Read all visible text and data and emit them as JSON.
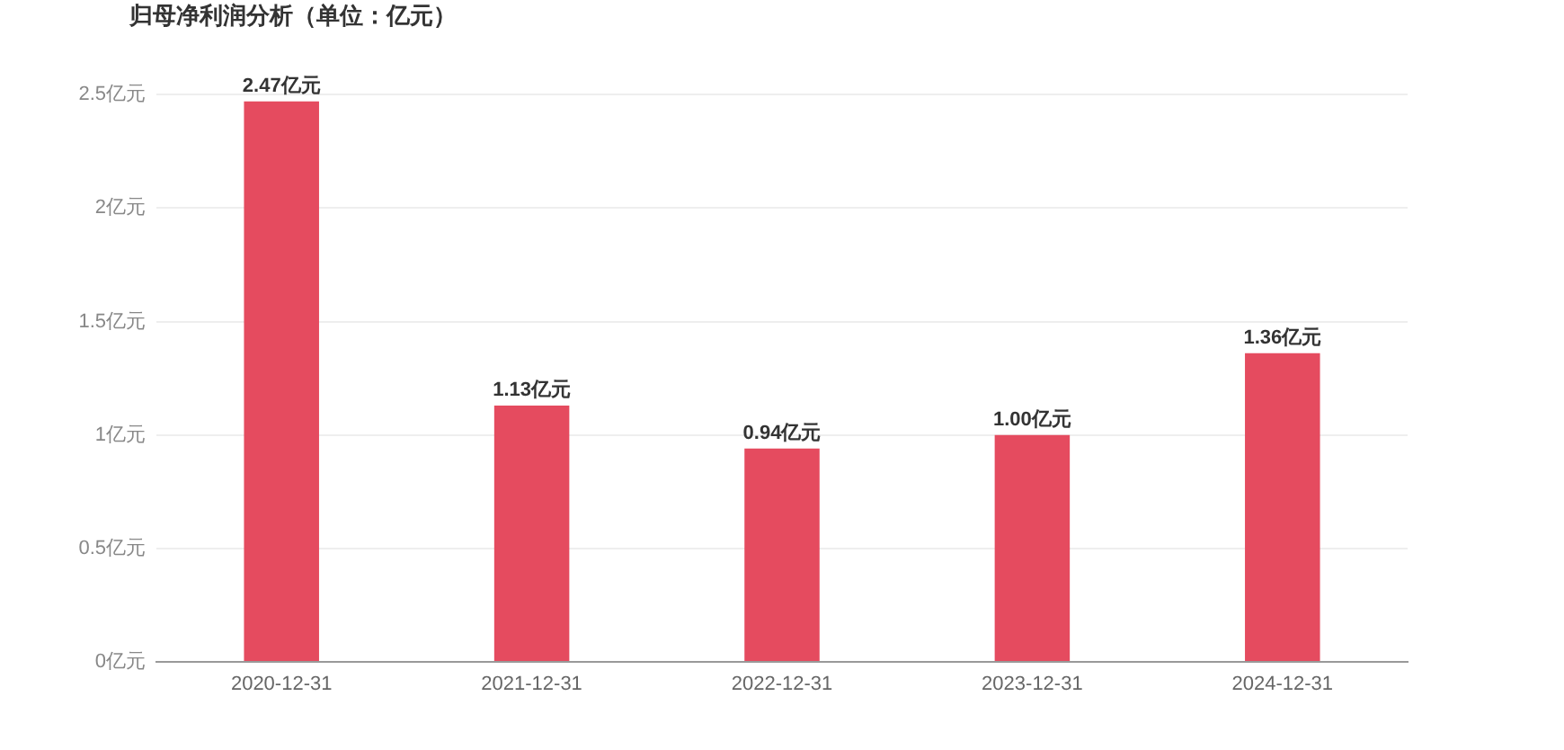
{
  "chart_data": {
    "type": "bar",
    "title": "归母净利润分析（单位：亿元）",
    "categories": [
      "2020-12-31",
      "2021-12-31",
      "2022-12-31",
      "2023-12-31",
      "2024-12-31"
    ],
    "values": [
      2.47,
      1.13,
      0.94,
      1.0,
      1.36
    ],
    "value_labels": [
      "2.47亿元",
      "1.13亿元",
      "0.94亿元",
      "1.00亿元",
      "1.36亿元"
    ],
    "color": "#e54b5f",
    "ylim": [
      0,
      2.5
    ],
    "yticks": [
      {
        "value": 0,
        "label": "0亿元"
      },
      {
        "value": 0.5,
        "label": "0.5亿元"
      },
      {
        "value": 1,
        "label": "1亿元"
      },
      {
        "value": 1.5,
        "label": "1.5亿元"
      },
      {
        "value": 2,
        "label": "2亿元"
      },
      {
        "value": 2.5,
        "label": "2.5亿元"
      }
    ],
    "grid": "y",
    "legend": false
  }
}
